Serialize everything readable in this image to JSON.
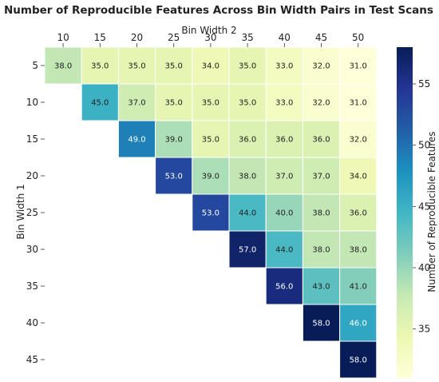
{
  "chart_data": {
    "type": "heatmap",
    "title": "Number of Reproducible Features Across Bin Width Pairs in Test Scans",
    "xlabel": "Bin Width 2",
    "ylabel": "Bin Width 1",
    "x_categories": [
      "10",
      "15",
      "20",
      "25",
      "30",
      "35",
      "40",
      "45",
      "50"
    ],
    "y_categories": [
      "5",
      "10",
      "15",
      "20",
      "25",
      "30",
      "35",
      "40",
      "45"
    ],
    "values": [
      [
        38.0,
        35.0,
        35.0,
        35.0,
        34.0,
        35.0,
        33.0,
        32.0,
        31.0
      ],
      [
        null,
        45.0,
        37.0,
        35.0,
        35.0,
        35.0,
        33.0,
        32.0,
        31.0
      ],
      [
        null,
        null,
        49.0,
        39.0,
        35.0,
        36.0,
        36.0,
        36.0,
        32.0
      ],
      [
        null,
        null,
        null,
        53.0,
        39.0,
        38.0,
        37.0,
        37.0,
        34.0
      ],
      [
        null,
        null,
        null,
        null,
        53.0,
        44.0,
        40.0,
        38.0,
        36.0
      ],
      [
        null,
        null,
        null,
        null,
        null,
        57.0,
        44.0,
        38.0,
        38.0
      ],
      [
        null,
        null,
        null,
        null,
        null,
        null,
        56.0,
        43.0,
        41.0
      ],
      [
        null,
        null,
        null,
        null,
        null,
        null,
        null,
        58.0,
        46.0
      ],
      [
        null,
        null,
        null,
        null,
        null,
        null,
        null,
        null,
        58.0
      ]
    ],
    "value_format": "0.0",
    "colormap": "YlGnBu",
    "colorbar": {
      "label": "Number of Reproducible Features",
      "range": [
        31,
        58
      ],
      "ticks": [
        35,
        40,
        45,
        50,
        55
      ]
    },
    "x_axis_position": "top",
    "grid": false
  }
}
